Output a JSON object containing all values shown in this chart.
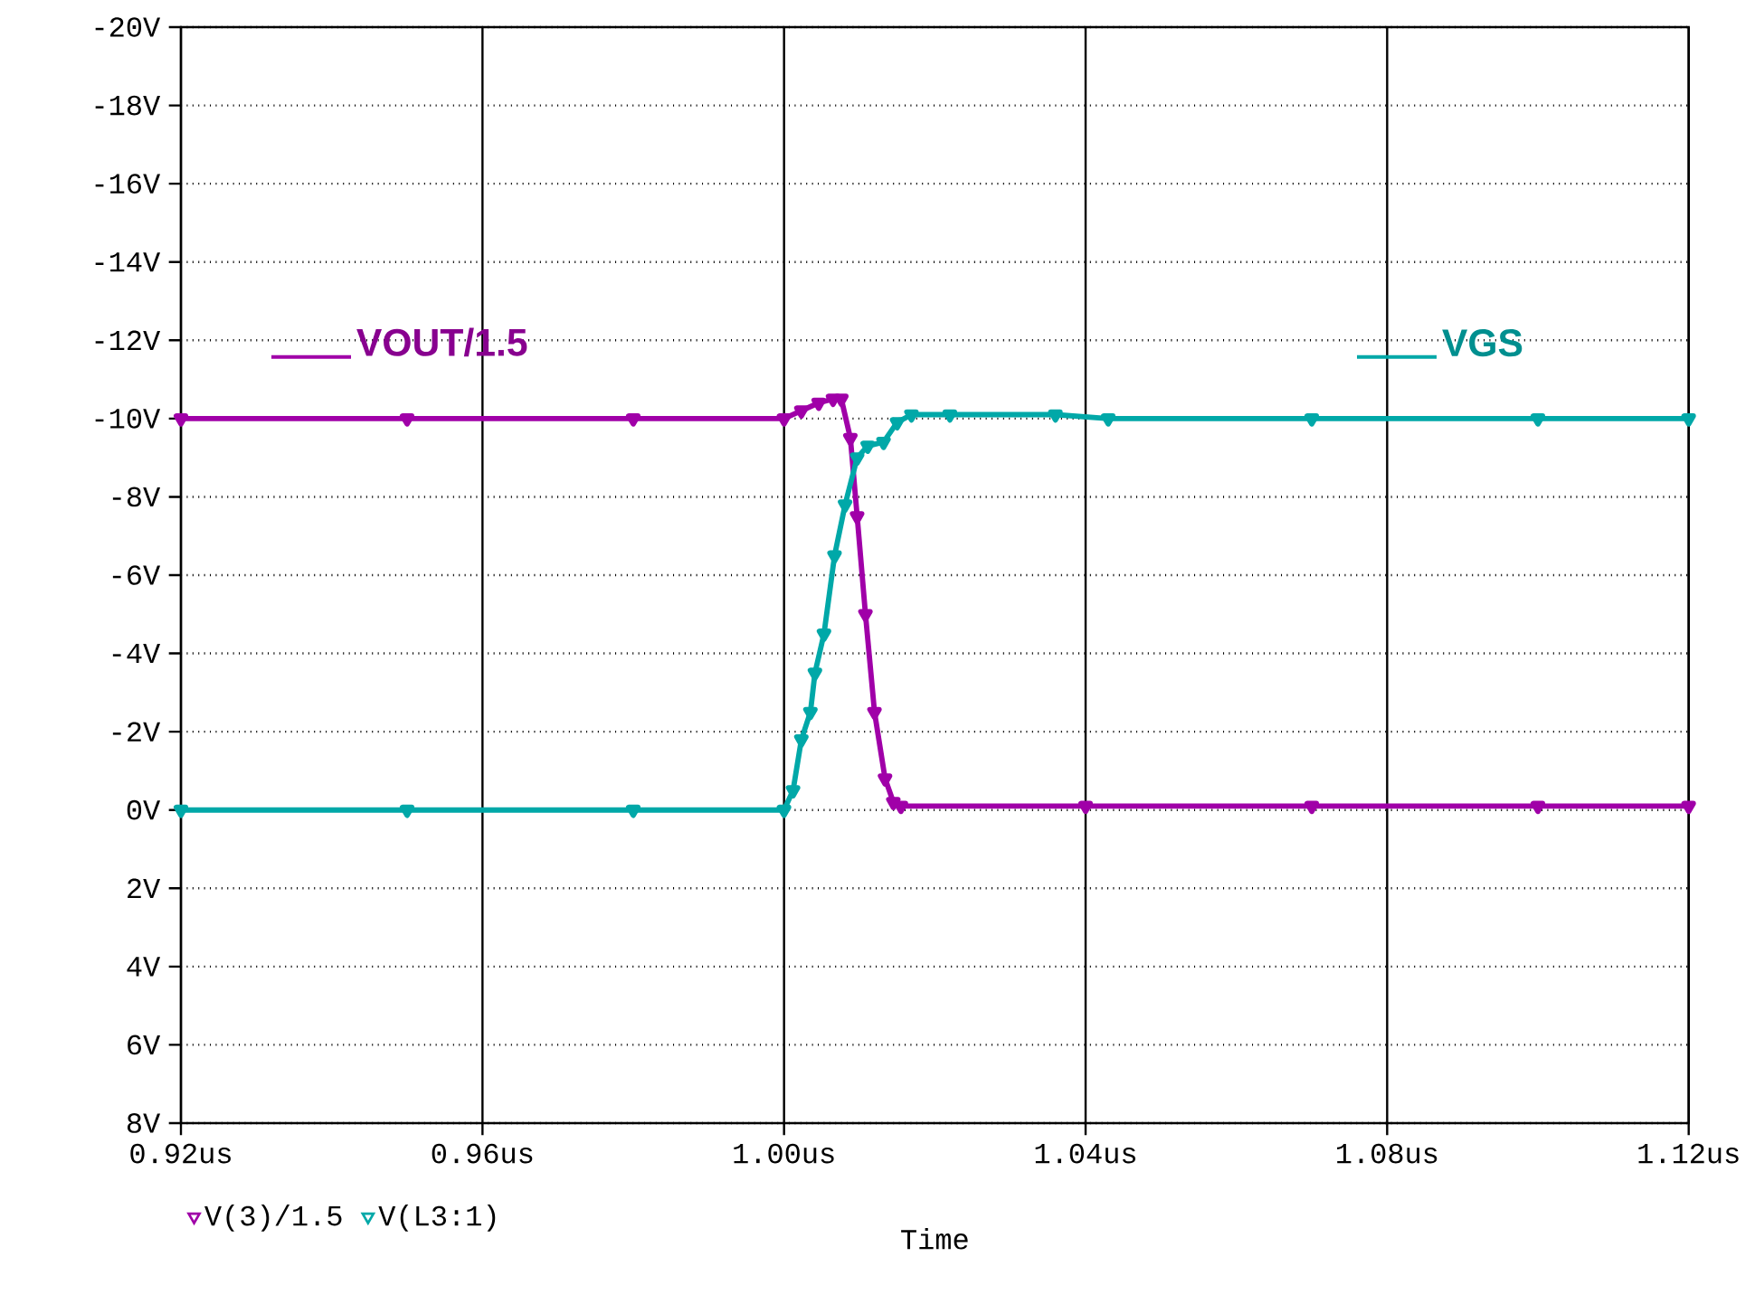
{
  "chart_data": {
    "type": "line",
    "xlabel": "Time",
    "xlim": [
      0.92,
      1.12
    ],
    "xticks": [
      {
        "value": 0.92,
        "label": "0.92us"
      },
      {
        "value": 0.96,
        "label": "0.96us"
      },
      {
        "value": 1.0,
        "label": "1.00us"
      },
      {
        "value": 1.04,
        "label": "1.04us"
      },
      {
        "value": 1.08,
        "label": "1.08us"
      },
      {
        "value": 1.12,
        "label": "1.12us"
      }
    ],
    "ylim": [
      8,
      -20
    ],
    "yticks": [
      {
        "value": -20,
        "label": "-20V"
      },
      {
        "value": -18,
        "label": "-18V"
      },
      {
        "value": -16,
        "label": "-16V"
      },
      {
        "value": -14,
        "label": "-14V"
      },
      {
        "value": -12,
        "label": "-12V"
      },
      {
        "value": -10,
        "label": "-10V"
      },
      {
        "value": -8,
        "label": "-8V"
      },
      {
        "value": -6,
        "label": "-6V"
      },
      {
        "value": -4,
        "label": "-4V"
      },
      {
        "value": -2,
        "label": "-2V"
      },
      {
        "value": 0,
        "label": "0V"
      },
      {
        "value": 2,
        "label": "2V"
      },
      {
        "value": 4,
        "label": "4V"
      },
      {
        "value": 6,
        "label": "6V"
      },
      {
        "value": 8,
        "label": "8V"
      }
    ],
    "grid": true,
    "legend": "bottom",
    "marker": "triangle",
    "line_style": "solid",
    "annotations": [
      "VOUT/1.5",
      "VGS"
    ],
    "series": [
      {
        "name": "V(3)/1.5",
        "color": "#a000a8",
        "x": [
          0.92,
          0.95,
          0.98,
          1.0,
          1.0023,
          1.0046,
          1.0065,
          1.0076,
          1.0088,
          1.0097,
          1.0108,
          1.012,
          1.0134,
          1.0145,
          1.0155,
          1.04,
          1.07,
          1.1,
          1.12
        ],
        "values": [
          -10,
          -10,
          -10,
          -10,
          -10.2,
          -10.4,
          -10.5,
          -10.5,
          -9.5,
          -7.5,
          -5,
          -2.5,
          -0.8,
          -0.2,
          -0.1,
          -0.1,
          -0.1,
          -0.1,
          -0.1
        ]
      },
      {
        "name": "V(L3:1)",
        "color": "#00a8a8",
        "x": [
          0.92,
          0.95,
          0.98,
          1.0,
          1.0012,
          1.0023,
          1.0035,
          1.0041,
          1.0053,
          1.0067,
          1.0081,
          1.0097,
          1.0111,
          1.0132,
          1.015,
          1.0169,
          1.022,
          1.036,
          1.043,
          1.07,
          1.1,
          1.12
        ],
        "values": [
          0,
          0,
          0,
          0,
          -0.5,
          -1.8,
          -2.5,
          -3.5,
          -4.5,
          -6.5,
          -7.8,
          -9,
          -9.3,
          -9.4,
          -9.9,
          -10.1,
          -10.1,
          -10.1,
          -10,
          -10,
          -10,
          -10
        ]
      }
    ]
  }
}
